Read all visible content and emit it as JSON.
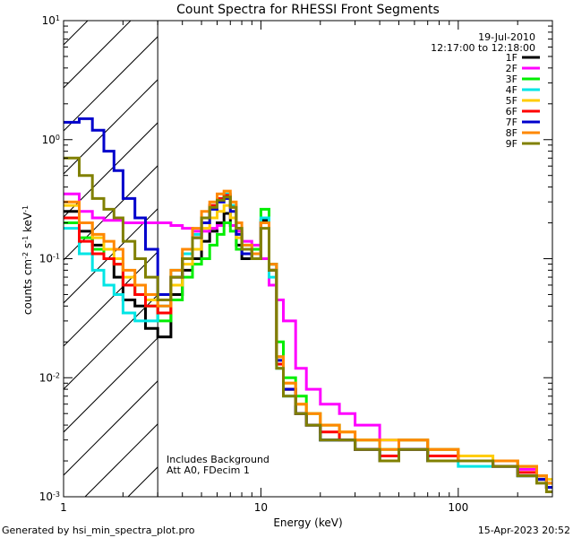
{
  "chart_data": {
    "type": "line",
    "title": "Count Spectra for RHESSI Front Segments",
    "xlabel": "Energy (keV)",
    "ylabel": "counts cm^-2 s^-1 keV^-1",
    "xscale": "log",
    "yscale": "log",
    "xlim": [
      1,
      300
    ],
    "ylim": [
      0.001,
      10
    ],
    "x_ticks": [
      {
        "value": 1,
        "label": "1"
      },
      {
        "value": 10,
        "label": "10"
      },
      {
        "value": 100,
        "label": "100"
      }
    ],
    "y_ticks": [
      {
        "value": 10,
        "base": "10",
        "exp": "1"
      },
      {
        "value": 1,
        "base": "10",
        "exp": "0"
      },
      {
        "value": 0.1,
        "base": "10",
        "exp": "-1"
      },
      {
        "value": 0.01,
        "base": "10",
        "exp": "-2"
      },
      {
        "value": 0.001,
        "base": "10",
        "exp": "-3"
      }
    ],
    "shaded_region": {
      "from": 1,
      "to": 3
    },
    "date": "19-Jul-2010",
    "time_range": "12:17:00 to 12:18:00",
    "notes": [
      "Includes Background",
      "Att A0, FDecim 1"
    ],
    "footer_left": "Generated by hsi_min_spectra_plot.pro",
    "footer_right": "15-Apr-2023 20:52",
    "series": [
      {
        "name": "1F",
        "color": "#000000",
        "x": [
          1.0,
          1.2,
          1.4,
          1.6,
          1.8,
          2.0,
          2.3,
          2.6,
          3.0,
          3.5,
          4.0,
          4.5,
          5.0,
          5.5,
          6.0,
          6.5,
          7.0,
          7.5,
          8.0,
          9.0,
          10.0,
          11.0,
          12.0,
          13.0,
          15.0,
          17.0,
          20.0,
          25.0,
          30.0,
          40.0,
          50.0,
          70.0,
          100.0,
          150.0,
          200.0,
          250.0,
          280.0
        ],
        "values": [
          0.25,
          0.17,
          0.13,
          0.1,
          0.07,
          0.045,
          0.04,
          0.026,
          0.022,
          0.05,
          0.08,
          0.1,
          0.14,
          0.17,
          0.2,
          0.24,
          0.19,
          0.13,
          0.1,
          0.12,
          0.21,
          0.09,
          0.015,
          0.008,
          0.005,
          0.004,
          0.003,
          0.003,
          0.0025,
          0.002,
          0.0025,
          0.002,
          0.002,
          0.0018,
          0.0015,
          0.0015,
          0.0012
        ]
      },
      {
        "name": "2F",
        "color": "#ff00ff",
        "x": [
          1.0,
          1.2,
          1.4,
          1.6,
          1.8,
          2.0,
          2.3,
          2.6,
          3.0,
          3.5,
          4.0,
          4.5,
          5.0,
          5.5,
          6.0,
          6.5,
          7.0,
          7.5,
          8.0,
          9.0,
          10.0,
          11.0,
          12.0,
          13.0,
          15.0,
          17.0,
          20.0,
          25.0,
          30.0,
          40.0,
          50.0,
          70.0,
          100.0,
          150.0,
          200.0,
          250.0,
          280.0
        ],
        "values": [
          0.35,
          0.25,
          0.22,
          0.21,
          0.21,
          0.2,
          0.2,
          0.2,
          0.2,
          0.19,
          0.18,
          0.17,
          0.17,
          0.18,
          0.19,
          0.2,
          0.19,
          0.17,
          0.14,
          0.13,
          0.1,
          0.06,
          0.045,
          0.03,
          0.012,
          0.008,
          0.006,
          0.005,
          0.004,
          0.003,
          0.003,
          0.0025,
          0.002,
          0.002,
          0.0017,
          0.0015,
          0.0013
        ]
      },
      {
        "name": "3F",
        "color": "#00ee00",
        "x": [
          1.0,
          1.2,
          1.4,
          1.6,
          1.8,
          2.0,
          2.3,
          2.6,
          3.0,
          3.5,
          4.0,
          4.5,
          5.0,
          5.5,
          6.0,
          6.5,
          7.0,
          7.5,
          8.0,
          9.0,
          10.0,
          11.0,
          12.0,
          13.0,
          15.0,
          17.0,
          20.0,
          25.0,
          30.0,
          40.0,
          50.0,
          70.0,
          100.0,
          150.0,
          200.0,
          250.0,
          280.0
        ],
        "values": [
          0.2,
          0.15,
          0.12,
          0.1,
          0.09,
          0.06,
          0.05,
          0.04,
          0.03,
          0.045,
          0.07,
          0.09,
          0.1,
          0.13,
          0.16,
          0.2,
          0.17,
          0.12,
          0.11,
          0.12,
          0.26,
          0.09,
          0.02,
          0.01,
          0.007,
          0.005,
          0.004,
          0.003,
          0.003,
          0.0025,
          0.003,
          0.0025,
          0.002,
          0.002,
          0.0018,
          0.0015,
          0.0013
        ]
      },
      {
        "name": "4F",
        "color": "#00e5e5",
        "x": [
          1.0,
          1.2,
          1.4,
          1.6,
          1.8,
          2.0,
          2.3,
          2.6,
          3.0,
          3.5,
          4.0,
          4.5,
          5.0,
          5.5,
          6.0,
          6.5,
          7.0,
          7.5,
          8.0,
          9.0,
          10.0,
          11.0,
          12.0,
          13.0,
          15.0,
          17.0,
          20.0,
          25.0,
          30.0,
          40.0,
          50.0,
          70.0,
          100.0,
          150.0,
          200.0,
          250.0,
          280.0
        ],
        "values": [
          0.18,
          0.11,
          0.08,
          0.06,
          0.05,
          0.035,
          0.03,
          0.03,
          0.04,
          0.08,
          0.11,
          0.16,
          0.22,
          0.28,
          0.32,
          0.35,
          0.28,
          0.18,
          0.13,
          0.1,
          0.22,
          0.07,
          0.012,
          0.007,
          0.005,
          0.004,
          0.003,
          0.003,
          0.0025,
          0.002,
          0.0025,
          0.002,
          0.0018,
          0.0018,
          0.0015,
          0.0014,
          0.0012
        ]
      },
      {
        "name": "5F",
        "color": "#ffcc00",
        "x": [
          1.0,
          1.2,
          1.4,
          1.6,
          1.8,
          2.0,
          2.3,
          2.6,
          3.0,
          3.5,
          4.0,
          4.5,
          5.0,
          5.5,
          6.0,
          6.5,
          7.0,
          7.5,
          8.0,
          9.0,
          10.0,
          11.0,
          12.0,
          13.0,
          15.0,
          17.0,
          20.0,
          25.0,
          30.0,
          40.0,
          50.0,
          70.0,
          100.0,
          150.0,
          200.0,
          250.0,
          280.0
        ],
        "values": [
          0.28,
          0.2,
          0.15,
          0.12,
          0.1,
          0.07,
          0.06,
          0.045,
          0.035,
          0.06,
          0.09,
          0.12,
          0.18,
          0.22,
          0.25,
          0.28,
          0.22,
          0.15,
          0.12,
          0.11,
          0.2,
          0.08,
          0.015,
          0.009,
          0.006,
          0.005,
          0.004,
          0.0035,
          0.003,
          0.003,
          0.003,
          0.0025,
          0.0022,
          0.002,
          0.0018,
          0.0015,
          0.0014
        ]
      },
      {
        "name": "6F",
        "color": "#ff0000",
        "x": [
          1.0,
          1.2,
          1.4,
          1.6,
          1.8,
          2.0,
          2.3,
          2.6,
          3.0,
          3.5,
          4.0,
          4.5,
          5.0,
          5.5,
          6.0,
          6.5,
          7.0,
          7.5,
          8.0,
          9.0,
          10.0,
          11.0,
          12.0,
          13.0,
          15.0,
          17.0,
          20.0,
          25.0,
          30.0,
          40.0,
          50.0,
          70.0,
          100.0,
          150.0,
          200.0,
          250.0,
          280.0
        ],
        "values": [
          0.22,
          0.14,
          0.11,
          0.1,
          0.09,
          0.06,
          0.05,
          0.04,
          0.035,
          0.07,
          0.1,
          0.15,
          0.22,
          0.28,
          0.32,
          0.34,
          0.27,
          0.18,
          0.12,
          0.1,
          0.2,
          0.08,
          0.013,
          0.008,
          0.005,
          0.004,
          0.0035,
          0.003,
          0.0025,
          0.0022,
          0.0025,
          0.0022,
          0.002,
          0.0018,
          0.0016,
          0.0014,
          0.0012
        ]
      },
      {
        "name": "7F",
        "color": "#0000cc",
        "x": [
          1.0,
          1.2,
          1.4,
          1.6,
          1.8,
          2.0,
          2.3,
          2.6,
          3.0,
          3.5,
          4.0,
          4.5,
          5.0,
          5.5,
          6.0,
          6.5,
          7.0,
          7.5,
          8.0,
          9.0,
          10.0,
          11.0,
          12.0,
          13.0,
          15.0,
          17.0,
          20.0,
          25.0,
          30.0,
          40.0,
          50.0,
          70.0,
          100.0,
          150.0,
          200.0,
          250.0,
          280.0
        ],
        "values": [
          1.4,
          1.5,
          1.2,
          0.8,
          0.55,
          0.32,
          0.22,
          0.12,
          0.05,
          0.07,
          0.1,
          0.15,
          0.2,
          0.26,
          0.3,
          0.32,
          0.25,
          0.16,
          0.11,
          0.1,
          0.2,
          0.08,
          0.014,
          0.008,
          0.005,
          0.004,
          0.003,
          0.003,
          0.0025,
          0.002,
          0.0025,
          0.002,
          0.002,
          0.0018,
          0.0015,
          0.0014,
          0.0012
        ]
      },
      {
        "name": "8F",
        "color": "#ff8800",
        "x": [
          1.0,
          1.2,
          1.4,
          1.6,
          1.8,
          2.0,
          2.3,
          2.6,
          3.0,
          3.5,
          4.0,
          4.5,
          5.0,
          5.5,
          6.0,
          6.5,
          7.0,
          7.5,
          8.0,
          9.0,
          10.0,
          11.0,
          12.0,
          13.0,
          15.0,
          17.0,
          20.0,
          25.0,
          30.0,
          40.0,
          50.0,
          70.0,
          100.0,
          150.0,
          200.0,
          250.0,
          280.0
        ],
        "values": [
          0.3,
          0.2,
          0.16,
          0.14,
          0.12,
          0.08,
          0.06,
          0.05,
          0.04,
          0.08,
          0.12,
          0.18,
          0.25,
          0.3,
          0.35,
          0.37,
          0.3,
          0.2,
          0.13,
          0.11,
          0.2,
          0.09,
          0.015,
          0.009,
          0.006,
          0.005,
          0.004,
          0.0035,
          0.003,
          0.0025,
          0.003,
          0.0025,
          0.002,
          0.002,
          0.0018,
          0.0015,
          0.0013
        ]
      },
      {
        "name": "9F",
        "color": "#808000",
        "x": [
          1.0,
          1.2,
          1.4,
          1.6,
          1.8,
          2.0,
          2.3,
          2.6,
          3.0,
          3.5,
          4.0,
          4.5,
          5.0,
          5.5,
          6.0,
          6.5,
          7.0,
          7.5,
          8.0,
          9.0,
          10.0,
          11.0,
          12.0,
          13.0,
          15.0,
          17.0,
          20.0,
          25.0,
          30.0,
          40.0,
          50.0,
          70.0,
          100.0,
          150.0,
          200.0,
          250.0,
          280.0
        ],
        "values": [
          0.7,
          0.5,
          0.32,
          0.26,
          0.22,
          0.14,
          0.1,
          0.07,
          0.045,
          0.07,
          0.1,
          0.15,
          0.22,
          0.27,
          0.31,
          0.33,
          0.27,
          0.18,
          0.12,
          0.1,
          0.18,
          0.08,
          0.012,
          0.007,
          0.005,
          0.004,
          0.003,
          0.003,
          0.0025,
          0.002,
          0.0025,
          0.002,
          0.002,
          0.0018,
          0.0015,
          0.0013,
          0.0011
        ]
      }
    ]
  }
}
